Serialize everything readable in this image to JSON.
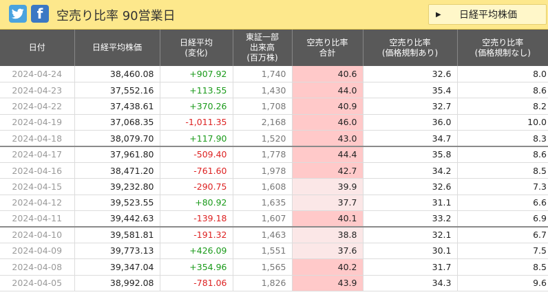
{
  "header": {
    "title": "空売り比率 90営業日",
    "index_button": "日経平均株価",
    "social": {
      "twitter": "twitter-icon",
      "facebook": "facebook-icon",
      "facebook_glyph": "f"
    }
  },
  "table": {
    "columns": [
      [
        "日付"
      ],
      [
        "日経平均株価"
      ],
      [
        "日経平均",
        "(変化)"
      ],
      [
        "東証一部",
        "出来高",
        "(百万株)"
      ],
      [
        "空売り比率",
        "合計"
      ],
      [
        "空売り比率",
        "(価格規制あり)"
      ],
      [
        "空売り比率",
        "(価格規制なし)"
      ]
    ],
    "rows": [
      {
        "date": "2024-04-24",
        "nikkei": "38,460.08",
        "change": "+907.92",
        "volume": "1,740",
        "ratio_total": "40.6",
        "ratio_reg": "32.6",
        "ratio_noreg": "8.0"
      },
      {
        "date": "2024-04-23",
        "nikkei": "37,552.16",
        "change": "+113.55",
        "volume": "1,430",
        "ratio_total": "44.0",
        "ratio_reg": "35.4",
        "ratio_noreg": "8.6"
      },
      {
        "date": "2024-04-22",
        "nikkei": "37,438.61",
        "change": "+370.26",
        "volume": "1,708",
        "ratio_total": "40.9",
        "ratio_reg": "32.7",
        "ratio_noreg": "8.2"
      },
      {
        "date": "2024-04-19",
        "nikkei": "37,068.35",
        "change": "-1,011.35",
        "volume": "2,168",
        "ratio_total": "46.0",
        "ratio_reg": "36.0",
        "ratio_noreg": "10.0"
      },
      {
        "date": "2024-04-18",
        "nikkei": "38,079.70",
        "change": "+117.90",
        "volume": "1,520",
        "ratio_total": "43.0",
        "ratio_reg": "34.7",
        "ratio_noreg": "8.3"
      },
      {
        "date": "2024-04-17",
        "nikkei": "37,961.80",
        "change": "-509.40",
        "volume": "1,778",
        "ratio_total": "44.4",
        "ratio_reg": "35.8",
        "ratio_noreg": "8.6"
      },
      {
        "date": "2024-04-16",
        "nikkei": "38,471.20",
        "change": "-761.60",
        "volume": "1,978",
        "ratio_total": "42.7",
        "ratio_reg": "34.2",
        "ratio_noreg": "8.5"
      },
      {
        "date": "2024-04-15",
        "nikkei": "39,232.80",
        "change": "-290.75",
        "volume": "1,608",
        "ratio_total": "39.9",
        "ratio_reg": "32.6",
        "ratio_noreg": "7.3"
      },
      {
        "date": "2024-04-12",
        "nikkei": "39,523.55",
        "change": "+80.92",
        "volume": "1,635",
        "ratio_total": "37.7",
        "ratio_reg": "31.1",
        "ratio_noreg": "6.6"
      },
      {
        "date": "2024-04-11",
        "nikkei": "39,442.63",
        "change": "-139.18",
        "volume": "1,607",
        "ratio_total": "40.1",
        "ratio_reg": "33.2",
        "ratio_noreg": "6.9"
      },
      {
        "date": "2024-04-10",
        "nikkei": "39,581.81",
        "change": "-191.32",
        "volume": "1,463",
        "ratio_total": "38.8",
        "ratio_reg": "32.1",
        "ratio_noreg": "6.7"
      },
      {
        "date": "2024-04-09",
        "nikkei": "39,773.13",
        "change": "+426.09",
        "volume": "1,551",
        "ratio_total": "37.6",
        "ratio_reg": "30.1",
        "ratio_noreg": "7.5"
      },
      {
        "date": "2024-04-08",
        "nikkei": "39,347.04",
        "change": "+354.96",
        "volume": "1,565",
        "ratio_total": "40.2",
        "ratio_reg": "31.7",
        "ratio_noreg": "8.5"
      },
      {
        "date": "2024-04-05",
        "nikkei": "38,992.08",
        "change": "-781.06",
        "volume": "1,826",
        "ratio_total": "43.9",
        "ratio_reg": "34.3",
        "ratio_noreg": "9.6"
      }
    ]
  },
  "colors": {
    "header_bar": "#fde88c",
    "table_header": "#595959",
    "positive": "#1a9a1a",
    "negative": "#dd2222",
    "ratio_high_bg": "#ffc9c9",
    "ratio_low_bg": "#fbe7e7"
  }
}
